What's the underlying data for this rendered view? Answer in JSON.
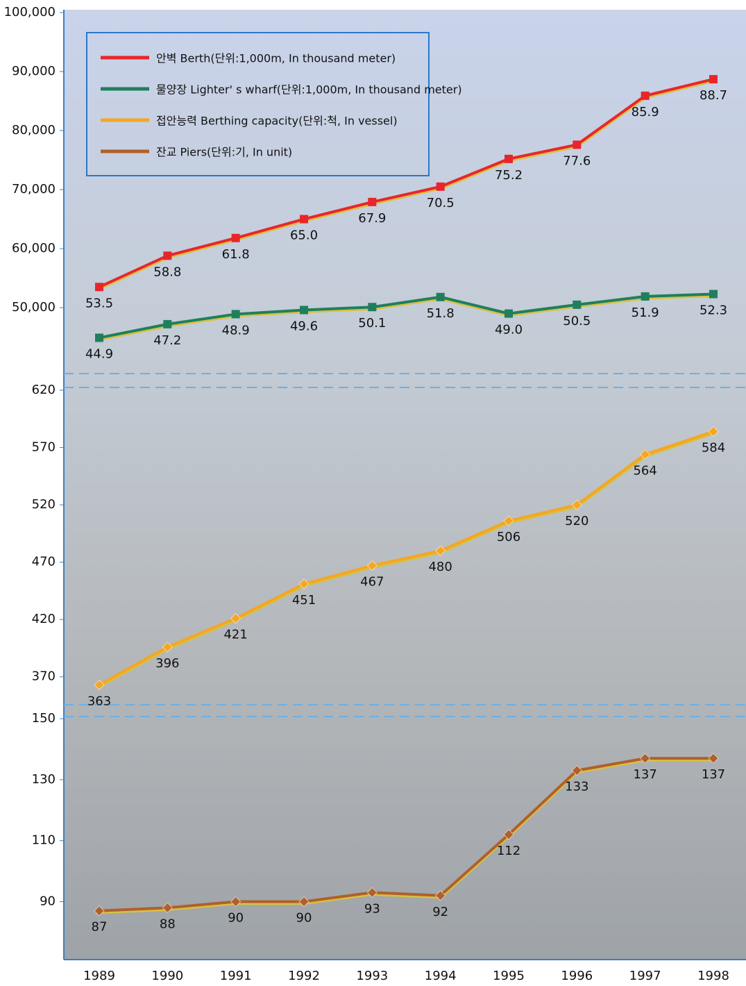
{
  "chart_data": [
    {
      "type": "line",
      "ylim": [
        38600,
        100000
      ],
      "yticks": [
        {
          "value": 50000,
          "label": "50,000"
        },
        {
          "value": 60000,
          "label": "60,000"
        },
        {
          "value": 70000,
          "label": "70,000"
        },
        {
          "value": 80000,
          "label": "80,000"
        },
        {
          "value": 90000,
          "label": "90,000"
        },
        {
          "value": 100000,
          "label": "100,000"
        }
      ],
      "legend": "upper left",
      "series": [
        {
          "name": "안벽 Berth(단위:1,000m, In thousand meter)",
          "color": "#e8262a",
          "marker": "square",
          "values": [
            53500,
            58800,
            61800,
            65000,
            67900,
            70500,
            75200,
            77600,
            85900,
            88700
          ],
          "value_labels": [
            "53.5",
            "58.8",
            "61.8",
            "65.0",
            "67.9",
            "70.5",
            "75.2",
            "77.6",
            "85.9",
            "88.7"
          ]
        },
        {
          "name": "물양장 Lighter' s wharf(단위:1,000m, In thousand meter)",
          "color": "#1f7f5c",
          "marker": "square",
          "values": [
            44900,
            47200,
            48900,
            49600,
            50100,
            51800,
            49000,
            50500,
            51900,
            52300
          ],
          "value_labels": [
            "44.9",
            "47.2",
            "48.9",
            "49.6",
            "50.1",
            "51.8",
            "49.0",
            "50.5",
            "51.9",
            "52.3"
          ]
        }
      ]
    },
    {
      "type": "line",
      "ylim": [
        345,
        620
      ],
      "yticks": [
        370,
        420,
        470,
        520,
        570,
        620
      ],
      "series": [
        {
          "name": "접안능력 Berthing capacity(단위:척, In vessel)",
          "color": "#f5a623",
          "marker": "diamond",
          "values": [
            363,
            396,
            421,
            451,
            467,
            480,
            506,
            520,
            564,
            584
          ]
        }
      ]
    },
    {
      "type": "line",
      "ylim": [
        71,
        150
      ],
      "yticks": [
        90,
        110,
        130,
        150
      ],
      "categories": [
        "1989",
        "1990",
        "1991",
        "1992",
        "1993",
        "1994",
        "1995",
        "1996",
        "1997",
        "1998"
      ],
      "series": [
        {
          "name": "잔교 Piers(단위:기, In unit)",
          "color": "#b0602a",
          "marker": "diamond",
          "values": [
            87,
            88,
            90,
            90,
            93,
            92,
            112,
            133,
            137,
            137
          ]
        }
      ]
    }
  ]
}
